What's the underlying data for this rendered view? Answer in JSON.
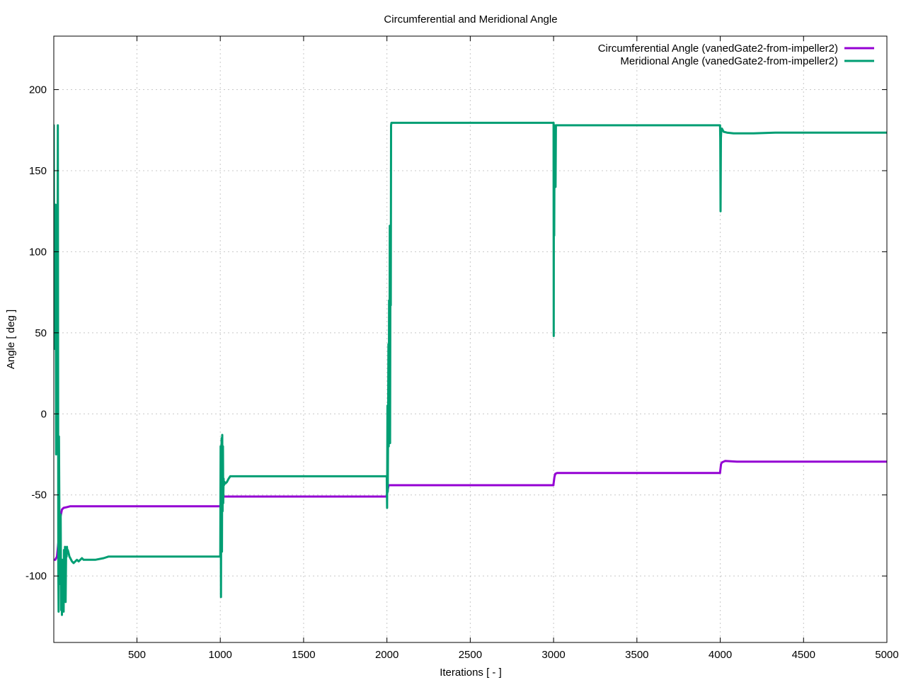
{
  "chart_data": {
    "type": "line",
    "title": "Circumferential and Meridional Angle",
    "xlabel": "Iterations [ - ]",
    "ylabel": "Angle [ deg ]",
    "xlim": [
      1,
      5000
    ],
    "ylim": [
      -141,
      233
    ],
    "xticks": [
      500,
      1000,
      1500,
      2000,
      2500,
      3000,
      3500,
      4000,
      4500,
      5000
    ],
    "yticks": [
      -100,
      -50,
      0,
      50,
      100,
      150,
      200
    ],
    "grid": true,
    "legend_position": "top-right",
    "series": [
      {
        "name": "Circumferential Angle (vanedGate2-from-impeller2)",
        "color": "#9400d3",
        "x": [
          1,
          10,
          20,
          30,
          40,
          50,
          60,
          80,
          100,
          150,
          300,
          600,
          1000,
          1005,
          1010,
          1020,
          1100,
          1500,
          1999,
          2000,
          2005,
          2010,
          2030,
          2500,
          2999,
          3000,
          3005,
          3010,
          3020,
          3100,
          3500,
          3999,
          4000,
          4005,
          4010,
          4030,
          4100,
          4500,
          5000
        ],
        "y": [
          -90,
          -90,
          -88,
          -78,
          -64,
          -59,
          -58,
          -57.5,
          -57,
          -57,
          -57,
          -57,
          -57,
          -53,
          -51,
          -51,
          -51,
          -51,
          -51,
          -50,
          -47,
          -44,
          -44,
          -44,
          -44,
          -43,
          -39,
          -37,
          -36.5,
          -36.5,
          -36.5,
          -36.5,
          -35,
          -31,
          -30,
          -29,
          -29.5,
          -29.5,
          -29.5
        ]
      },
      {
        "name": "Meridional Angle (vanedGate2-from-impeller2)",
        "color": "#009e73",
        "x": [
          1,
          3,
          6,
          9,
          12,
          15,
          18,
          20,
          22,
          25,
          28,
          30,
          32,
          35,
          38,
          40,
          42,
          45,
          48,
          50,
          52,
          55,
          58,
          60,
          62,
          65,
          68,
          70,
          72,
          75,
          78,
          80,
          82,
          85,
          90,
          95,
          100,
          110,
          120,
          130,
          140,
          150,
          160,
          170,
          180,
          200,
          250,
          300,
          330,
          360,
          400,
          500,
          660,
          800,
          998,
          1000,
          1002,
          1004,
          1006,
          1008,
          1010,
          1012,
          1014,
          1016,
          1018,
          1020,
          1022,
          1025,
          1030,
          1040,
          1050,
          1060,
          1070,
          1080,
          1100,
          1150,
          1300,
          1500,
          1999,
          2001,
          2003,
          2005,
          2007,
          2009,
          2011,
          2013,
          2015,
          2017,
          2019,
          2021,
          2023,
          2025,
          2027,
          2030,
          2035,
          2040,
          2100,
          2500,
          2999,
          3000,
          3001,
          3002,
          3004,
          3006,
          3008,
          3010,
          3012,
          3014,
          3016,
          3020,
          3040,
          3100,
          3300,
          3500,
          3999,
          4000,
          4002,
          4004,
          4006,
          4010,
          4020,
          4040,
          4080,
          4200,
          4330,
          4500,
          5000
        ],
        "y": [
          178,
          90,
          125,
          40,
          129,
          -25,
          128,
          90,
          0,
          178,
          -95,
          -122,
          -14,
          -70,
          -95,
          -105,
          -62,
          -121,
          -105,
          -124,
          -90,
          -115,
          -94,
          -122,
          -84,
          -110,
          -82,
          -110,
          -116,
          -85,
          -88,
          -82,
          -85,
          -84,
          -86,
          -88,
          -89,
          -91,
          -92,
          -91,
          -90,
          -91,
          -90,
          -89,
          -90,
          -90,
          -90,
          -89,
          -88,
          -88,
          -88,
          -88,
          -88,
          -88,
          -88,
          -88,
          -20,
          -113,
          -40,
          -15,
          -85,
          -13,
          -60,
          -20,
          -55,
          -40,
          -44,
          -42,
          -43,
          -42,
          -40,
          -38.5,
          -38.5,
          -38.5,
          -38.5,
          -38.5,
          -38.5,
          -38.5,
          -38.5,
          -58,
          5,
          -48,
          -10,
          43,
          -20,
          70,
          0,
          116,
          -18,
          100,
          67,
          178,
          179.5,
          179.5,
          179.5,
          179.5,
          179.5,
          179.5,
          179.5,
          179.5,
          48,
          178,
          110,
          178,
          155,
          165,
          140,
          178,
          178,
          178,
          178,
          178,
          178,
          178,
          178,
          170,
          125,
          170,
          175,
          176,
          174,
          173.5,
          173,
          173,
          173.5,
          173.5,
          173.5
        ]
      }
    ]
  }
}
